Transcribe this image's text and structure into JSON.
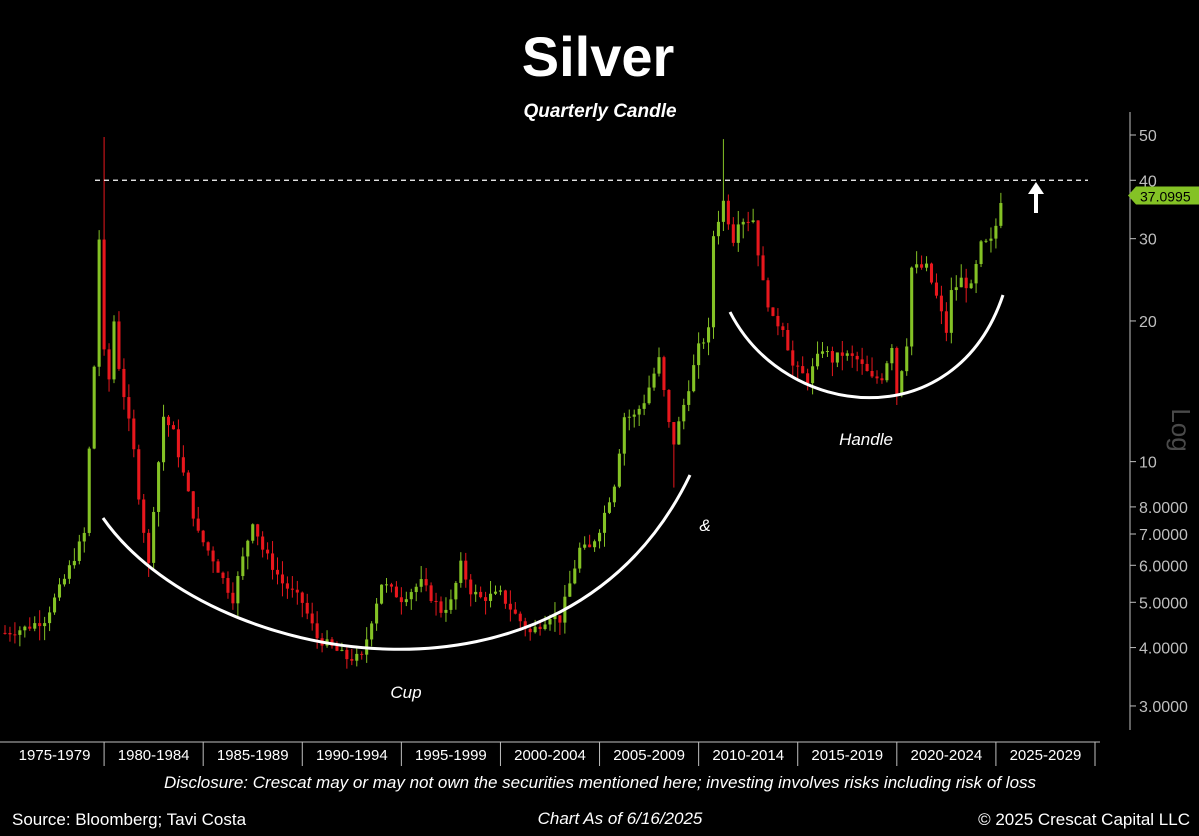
{
  "chart_data": {
    "type": "candlestick",
    "title": "Silver",
    "subtitle": "Quarterly Candle",
    "y_scale": "log",
    "y_scale_label": "Log",
    "ylim": [
      2.6,
      56
    ],
    "y_ticks": [
      {
        "value": 50,
        "label": "50"
      },
      {
        "value": 40,
        "label": "40"
      },
      {
        "value": 30,
        "label": "30"
      },
      {
        "value": 20,
        "label": "20"
      },
      {
        "value": 10,
        "label": "10"
      },
      {
        "value": 8,
        "label": "8.0000"
      },
      {
        "value": 7,
        "label": "7.0000"
      },
      {
        "value": 6,
        "label": "6.0000"
      },
      {
        "value": 5,
        "label": "5.0000"
      },
      {
        "value": 4,
        "label": "4.0000"
      },
      {
        "value": 3,
        "label": "3.0000"
      }
    ],
    "xlim": [
      1975.0,
      2030.0
    ],
    "x_periods": [
      "1975-1979",
      "1980-1984",
      "1985-1989",
      "1990-1994",
      "1995-1999",
      "2000-2004",
      "2005-2009",
      "2010-2014",
      "2015-2019",
      "2020-2024",
      "2025-2029"
    ],
    "last_price": "37.0995",
    "resistance_level": 40,
    "colors": {
      "up": "#84c225",
      "down": "#e8171d",
      "background": "#000000",
      "last_price_box": "#84c225"
    },
    "anchor_closes": [
      [
        1975.0,
        4.3
      ],
      [
        1976.0,
        4.4
      ],
      [
        1977.0,
        4.6
      ],
      [
        1978.0,
        5.6
      ],
      [
        1979.0,
        7.0
      ],
      [
        1979.5,
        16.0
      ],
      [
        1979.75,
        30.0
      ],
      [
        1980.0,
        17.0
      ],
      [
        1980.25,
        15.0
      ],
      [
        1980.5,
        20.0
      ],
      [
        1980.75,
        16.0
      ],
      [
        1981.5,
        10.5
      ],
      [
        1981.75,
        8.5
      ],
      [
        1982.25,
        6.0
      ],
      [
        1982.5,
        8.0
      ],
      [
        1983.0,
        12.5
      ],
      [
        1983.5,
        11.5
      ],
      [
        1984.25,
        8.5
      ],
      [
        1984.75,
        7.0
      ],
      [
        1985.5,
        6.2
      ],
      [
        1986.0,
        5.6
      ],
      [
        1986.5,
        5.1
      ],
      [
        1987.0,
        6.2
      ],
      [
        1987.5,
        7.5
      ],
      [
        1988.0,
        6.5
      ],
      [
        1989.0,
        5.5
      ],
      [
        1990.0,
        5.0
      ],
      [
        1990.75,
        4.2
      ],
      [
        1991.5,
        4.0
      ],
      [
        1992.25,
        3.8
      ],
      [
        1993.0,
        3.8
      ],
      [
        1993.5,
        4.6
      ],
      [
        1994.0,
        5.5
      ],
      [
        1995.0,
        5.1
      ],
      [
        1995.5,
        5.3
      ],
      [
        1996.0,
        5.5
      ],
      [
        1997.0,
        4.8
      ],
      [
        1997.5,
        5.0
      ],
      [
        1998.0,
        6.0
      ],
      [
        1998.5,
        5.3
      ],
      [
        1999.0,
        5.1
      ],
      [
        2000.0,
        5.2
      ],
      [
        2000.75,
        4.7
      ],
      [
        2001.5,
        4.3
      ],
      [
        2002.5,
        4.7
      ],
      [
        2003.0,
        4.6
      ],
      [
        2004.0,
        6.5
      ],
      [
        2004.5,
        6.5
      ],
      [
        2005.0,
        7.2
      ],
      [
        2005.75,
        9.0
      ],
      [
        2006.25,
        12.5
      ],
      [
        2006.75,
        12.5
      ],
      [
        2007.25,
        13.5
      ],
      [
        2008.0,
        16.5
      ],
      [
        2008.5,
        12.0
      ],
      [
        2008.75,
        11.0
      ],
      [
        2009.5,
        14.5
      ],
      [
        2010.0,
        17.5
      ],
      [
        2010.5,
        19.0
      ],
      [
        2010.75,
        30.5
      ],
      [
        2011.25,
        36.0
      ],
      [
        2011.75,
        30.0
      ],
      [
        2012.0,
        33.0
      ],
      [
        2012.75,
        33.0
      ],
      [
        2013.25,
        24.0
      ],
      [
        2013.75,
        20.0
      ],
      [
        2014.25,
        19.5
      ],
      [
        2014.75,
        16.0
      ],
      [
        2015.5,
        15.0
      ],
      [
        2016.25,
        17.5
      ],
      [
        2016.75,
        16.5
      ],
      [
        2017.25,
        17.0
      ],
      [
        2018.0,
        16.5
      ],
      [
        2018.75,
        15.0
      ],
      [
        2019.25,
        15.2
      ],
      [
        2019.75,
        17.8
      ],
      [
        2020.0,
        14.0
      ],
      [
        2020.5,
        18.0
      ],
      [
        2020.75,
        26.0
      ],
      [
        2021.5,
        26.0
      ],
      [
        2022.0,
        22.5
      ],
      [
        2022.5,
        19.0
      ],
      [
        2022.75,
        23.0
      ],
      [
        2023.25,
        24.5
      ],
      [
        2023.75,
        23.5
      ],
      [
        2024.25,
        29.0
      ],
      [
        2024.75,
        29.5
      ],
      [
        2025.0,
        32.0
      ],
      [
        2025.25,
        36.5
      ]
    ]
  },
  "annotations": {
    "cup": "Cup",
    "ampersand": "&",
    "handle": "Handle"
  },
  "footer": {
    "disclosure": "Disclosure: Crescat may or may not own the securities mentioned here; investing involves risks including risk of loss",
    "source": "Source: Bloomberg; Tavi Costa",
    "chart_as_of": "Chart As of 6/16/2025",
    "copyright": "© 2025 Crescat Capital LLC"
  }
}
